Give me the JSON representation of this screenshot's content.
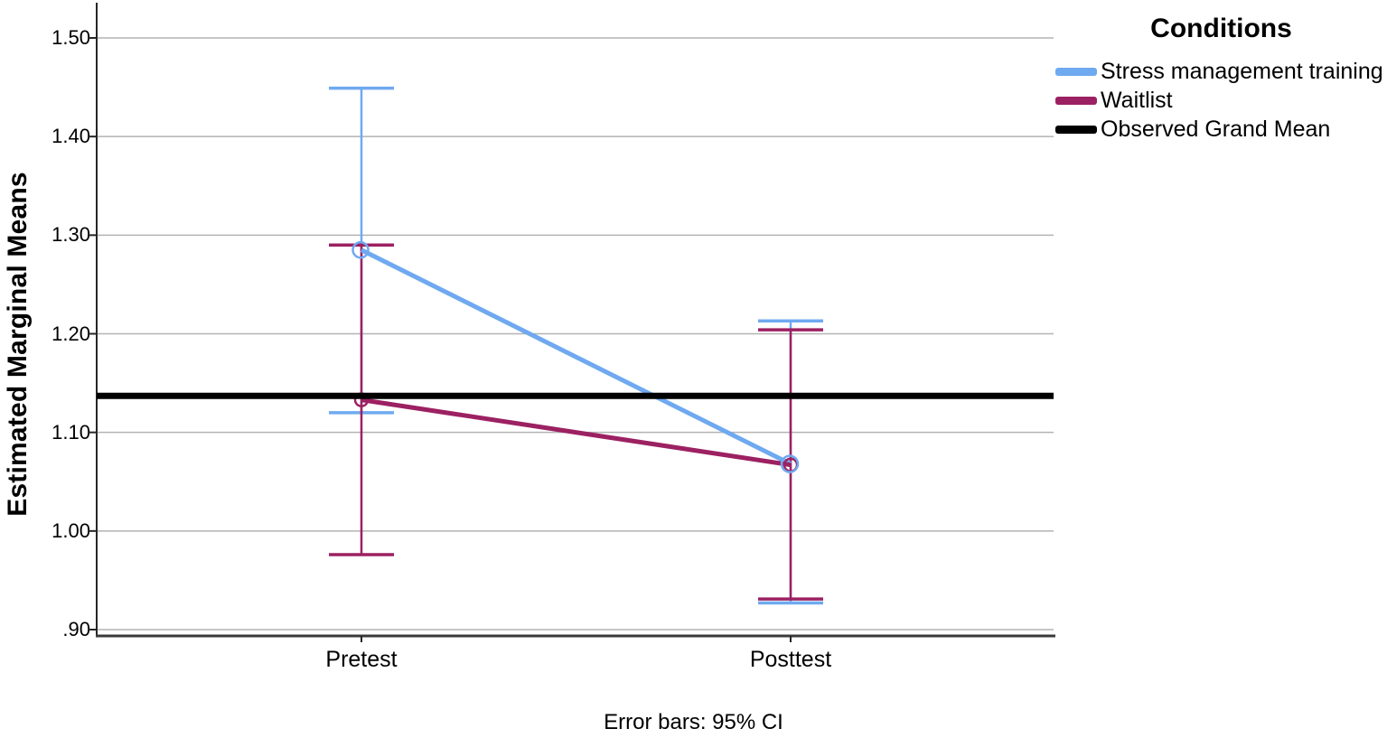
{
  "figure": {
    "caption": "Error bars: 95% CI"
  },
  "legend": {
    "title": "Conditions",
    "entries": [
      {
        "label": "Stress management training",
        "color": "#6FA9F0"
      },
      {
        "label": "Waitlist",
        "color": "#9C2162"
      },
      {
        "label": "Observed Grand Mean",
        "color": "#000000"
      }
    ]
  },
  "chart_data": {
    "type": "line",
    "title": "",
    "xlabel": "",
    "ylabel": "Estimated Marginal Means",
    "categories": [
      "Pretest",
      "Posttest"
    ],
    "yticks": [
      1.5,
      1.4,
      1.3,
      1.2,
      1.1,
      1.0,
      0.9
    ],
    "ytick_labels": [
      "1.50",
      "1.40",
      "1.30",
      "1.20",
      "1.10",
      "1.00",
      ".90"
    ],
    "ylim": [
      0.89,
      1.53
    ],
    "grid": true,
    "legend_position": "top-right",
    "error_bars_note": "Error bars: 95% CI",
    "grand_mean": {
      "label": "Observed Grand Mean",
      "value": 1.137,
      "color": "#000000"
    },
    "series": [
      {
        "name": "Stress management training",
        "color": "#6FA9F0",
        "values": [
          1.285,
          1.068
        ],
        "ci_low": [
          1.12,
          0.927
        ],
        "ci_high": [
          1.449,
          1.213
        ]
      },
      {
        "name": "Waitlist",
        "color": "#9C2162",
        "values": [
          1.133,
          1.067
        ],
        "ci_low": [
          0.976,
          0.931
        ],
        "ci_high": [
          1.29,
          1.204
        ]
      }
    ]
  },
  "style_colors": {
    "gridline": "#b3b3b3",
    "axis": "#262626",
    "bottom_axis": "#3a3a3a"
  }
}
